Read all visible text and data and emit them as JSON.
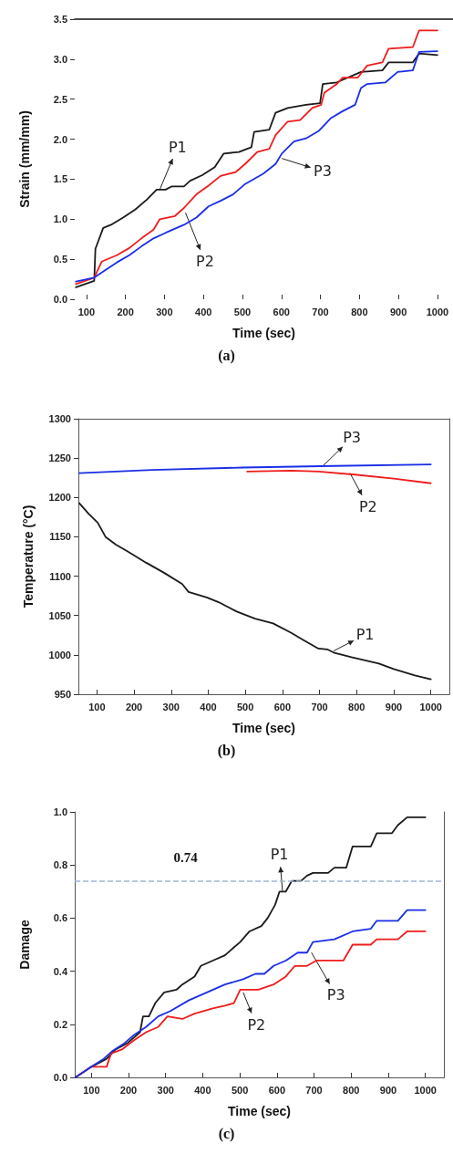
{
  "chart_data": [
    {
      "type": "line",
      "title": "(a)",
      "xlabel": "Time (sec)",
      "ylabel": "Strain (mm/mm)",
      "xlim": [
        70,
        1040
      ],
      "xticks": [
        100,
        200,
        300,
        400,
        500,
        600,
        700,
        800,
        900,
        1000
      ],
      "ylim": [
        0,
        3.5
      ],
      "yticks": [
        {
          "value": 0,
          "label": "0.0"
        },
        {
          "value": 0.5,
          "label": "0.5"
        },
        {
          "value": 1,
          "label": "1.0"
        },
        {
          "value": 1.5,
          "label": "1.5"
        },
        {
          "value": 2,
          "label": "2.0"
        },
        {
          "value": 2.5,
          "label": "2.5"
        },
        {
          "value": 3,
          "label": "3.0"
        },
        {
          "value": 3.5,
          "label": "3.5"
        }
      ],
      "grid": false,
      "marker": "none",
      "line_style": "solid",
      "series": [
        {
          "color": "#1a1a1a",
          "x": [
            73,
            120,
            123,
            143,
            163,
            194,
            225,
            256,
            280,
            303,
            319,
            350,
            366,
            397,
            429,
            452,
            491,
            523,
            530,
            569,
            585,
            616,
            663,
            699,
            706,
            742,
            804,
            859,
            875,
            937,
            953,
            1000
          ],
          "values": [
            0.15,
            0.23,
            0.63,
            0.89,
            0.93,
            1.02,
            1.12,
            1.25,
            1.37,
            1.37,
            1.41,
            1.41,
            1.48,
            1.55,
            1.65,
            1.82,
            1.84,
            1.9,
            2.09,
            2.12,
            2.33,
            2.39,
            2.43,
            2.45,
            2.69,
            2.71,
            2.84,
            2.86,
            2.96,
            2.96,
            3.07,
            3.05
          ]
        },
        {
          "color": "#ee1c1c",
          "x": [
            73,
            120,
            139,
            178,
            210,
            241,
            272,
            288,
            327,
            350,
            382,
            413,
            444,
            483,
            507,
            538,
            569,
            585,
            616,
            648,
            679,
            702,
            710,
            742,
            757,
            796,
            820,
            859,
            875,
            937,
            953,
            1000
          ],
          "values": [
            0.19,
            0.27,
            0.47,
            0.55,
            0.64,
            0.76,
            0.87,
            1.0,
            1.04,
            1.14,
            1.31,
            1.42,
            1.54,
            1.59,
            1.69,
            1.84,
            1.88,
            2.05,
            2.22,
            2.24,
            2.39,
            2.43,
            2.58,
            2.69,
            2.77,
            2.77,
            2.92,
            2.96,
            3.13,
            3.15,
            3.36,
            3.36
          ]
        },
        {
          "color": "#1a2ee6",
          "x": [
            73,
            120,
            147,
            178,
            210,
            241,
            272,
            303,
            350,
            382,
            413,
            444,
            476,
            507,
            554,
            585,
            601,
            632,
            663,
            695,
            726,
            757,
            789,
            804,
            820,
            867,
            898,
            937,
            953,
            1000
          ],
          "values": [
            0.22,
            0.27,
            0.36,
            0.46,
            0.55,
            0.66,
            0.76,
            0.83,
            0.93,
            1.02,
            1.16,
            1.23,
            1.31,
            1.44,
            1.57,
            1.69,
            1.82,
            1.97,
            2.01,
            2.1,
            2.26,
            2.35,
            2.43,
            2.64,
            2.69,
            2.71,
            2.84,
            2.86,
            3.09,
            3.1
          ]
        }
      ],
      "annotations": [
        {
          "text": "P1",
          "x": 288,
          "y": 1.37
        },
        {
          "text": "P2",
          "x": 354,
          "y": 1.08
        },
        {
          "text": "P3",
          "x": 601,
          "y": 1.76
        }
      ]
    },
    {
      "type": "line",
      "title": "(b)",
      "xlabel": "Time (sec)",
      "ylabel": "Temperature (°C)",
      "xlim": [
        50,
        1050
      ],
      "xticks": [
        100,
        200,
        300,
        400,
        500,
        600,
        700,
        800,
        900,
        1000
      ],
      "ylim": [
        950,
        1300
      ],
      "yticks": [
        950,
        1000,
        1050,
        1100,
        1150,
        1200,
        1250,
        1300
      ],
      "grid": false,
      "marker": "none",
      "line_style": "solid",
      "series": [
        {
          "color": "#1a1a1a",
          "x": [
            52,
            78,
            102,
            123,
            151,
            184,
            233,
            282,
            330,
            347,
            396,
            428,
            477,
            526,
            575,
            624,
            656,
            697,
            721,
            738,
            786,
            860,
            900,
            957,
            1000
          ],
          "values": [
            1193,
            1179,
            1168,
            1150,
            1140,
            1131,
            1117,
            1104,
            1090,
            1080,
            1073,
            1067,
            1055,
            1046,
            1040,
            1028,
            1019,
            1008,
            1007,
            1003,
            997,
            989,
            982,
            974,
            969
          ]
        },
        {
          "color": "#ee1c1c",
          "x": [
            505,
            624,
            697,
            795,
            900,
            1000
          ],
          "values": [
            1233,
            1234,
            1233,
            1229,
            1224,
            1218
          ]
        },
        {
          "color": "#1a2ee6",
          "x": [
            52,
            249,
            493,
            738,
            1000
          ],
          "values": [
            1231,
            1235,
            1238,
            1240,
            1242
          ]
        }
      ],
      "annotations": [
        {
          "text": "P3",
          "x": 709,
          "y": 1240
        },
        {
          "text": "P2",
          "x": 782,
          "y": 1231
        },
        {
          "text": "P1",
          "x": 738,
          "y": 1005
        }
      ]
    },
    {
      "type": "line",
      "title": "(c)",
      "xlabel": "Time (sec)",
      "ylabel": "Damage",
      "xlim": [
        55,
        1050
      ],
      "xticks": [
        100,
        200,
        300,
        400,
        500,
        600,
        700,
        800,
        900,
        1000
      ],
      "ylim": [
        0,
        1
      ],
      "yticks": [
        {
          "value": 0,
          "label": "0.0"
        },
        {
          "value": 0.2,
          "label": "0.2"
        },
        {
          "value": 0.4,
          "label": "0.4"
        },
        {
          "value": 0.6,
          "label": "0.6"
        },
        {
          "value": 0.8,
          "label": "0.8"
        },
        {
          "value": 1,
          "label": "1.0"
        }
      ],
      "grid": false,
      "marker": "none",
      "line_style": "solid",
      "ref_lines": [
        {
          "axis": "y",
          "value": 0.74,
          "label": "0.74",
          "color": "#9fb4d6",
          "line_style": "dashed"
        }
      ],
      "series": [
        {
          "color": "#1a1a1a",
          "x": [
            57,
            100,
            141,
            165,
            198,
            231,
            239,
            255,
            272,
            296,
            329,
            345,
            378,
            395,
            427,
            460,
            476,
            501,
            526,
            558,
            575,
            595,
            607,
            624,
            640,
            665,
            681,
            697,
            738,
            755,
            787,
            804,
            853,
            869,
            910,
            926,
            951,
            1000
          ],
          "values": [
            0.0,
            0.04,
            0.07,
            0.105,
            0.13,
            0.17,
            0.23,
            0.23,
            0.28,
            0.32,
            0.33,
            0.35,
            0.38,
            0.42,
            0.44,
            0.46,
            0.48,
            0.51,
            0.55,
            0.57,
            0.6,
            0.65,
            0.7,
            0.7,
            0.74,
            0.74,
            0.76,
            0.77,
            0.77,
            0.79,
            0.79,
            0.87,
            0.87,
            0.92,
            0.92,
            0.95,
            0.98,
            0.98
          ]
        },
        {
          "color": "#ee1c1c",
          "x": [
            57,
            100,
            141,
            153,
            182,
            215,
            247,
            280,
            305,
            345,
            378,
            427,
            460,
            484,
            501,
            550,
            591,
            624,
            648,
            681,
            706,
            779,
            804,
            853,
            869,
            926,
            951,
            1000
          ],
          "values": [
            0.0,
            0.04,
            0.04,
            0.09,
            0.105,
            0.14,
            0.17,
            0.19,
            0.23,
            0.22,
            0.24,
            0.26,
            0.27,
            0.28,
            0.33,
            0.33,
            0.35,
            0.38,
            0.42,
            0.42,
            0.44,
            0.44,
            0.5,
            0.5,
            0.52,
            0.52,
            0.55,
            0.55
          ]
        },
        {
          "color": "#1a2ee6",
          "x": [
            57,
            100,
            133,
            157,
            190,
            215,
            247,
            280,
            313,
            362,
            411,
            460,
            509,
            542,
            566,
            591,
            624,
            656,
            681,
            697,
            755,
            804,
            853,
            869,
            926,
            951,
            1000
          ],
          "values": [
            0.0,
            0.04,
            0.07,
            0.1,
            0.13,
            0.16,
            0.19,
            0.23,
            0.25,
            0.29,
            0.32,
            0.35,
            0.37,
            0.39,
            0.39,
            0.42,
            0.44,
            0.47,
            0.47,
            0.51,
            0.52,
            0.55,
            0.56,
            0.59,
            0.59,
            0.63,
            0.63
          ]
        }
      ],
      "annotations": [
        {
          "text": "P1",
          "x": 615,
          "y": 0.7
        },
        {
          "text": "P2",
          "x": 509,
          "y": 0.32
        },
        {
          "text": "P3",
          "x": 693,
          "y": 0.47
        }
      ]
    }
  ]
}
